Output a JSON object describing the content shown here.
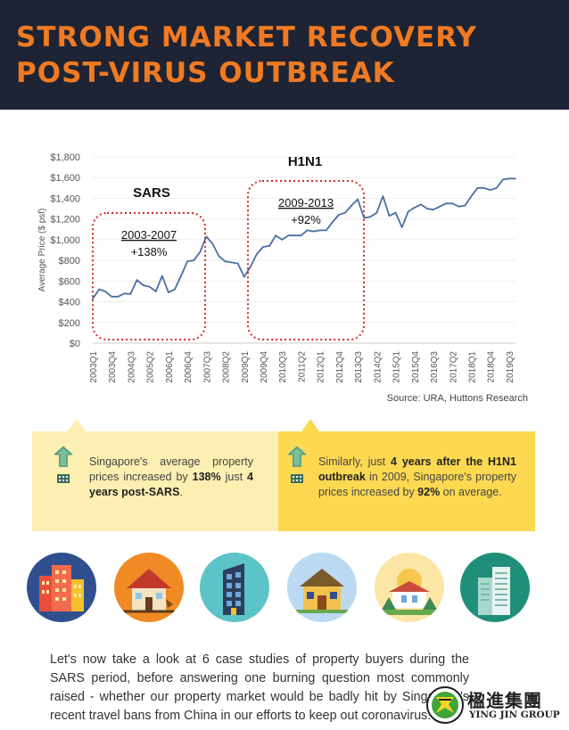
{
  "header": {
    "title_line1": "STRONG MARKET RECOVERY",
    "title_line2": "POST-VIRUS OUTBREAK",
    "background": "#1e2433",
    "accent": "#f07a22"
  },
  "chart_data": {
    "type": "line",
    "title": "",
    "xlabel": "",
    "ylabel": "Average Price ($ psf)",
    "ylim": [
      0,
      1800
    ],
    "yticks": [
      0,
      200,
      400,
      600,
      800,
      1000,
      1200,
      1400,
      1600,
      1800
    ],
    "ytick_labels": [
      "$0",
      "$200",
      "$400",
      "$600",
      "$800",
      "$1,000",
      "$1,200",
      "$1,400",
      "$1,600",
      "$1,800"
    ],
    "xtick_labels": [
      "2003Q1",
      "2003Q4",
      "2004Q3",
      "2005Q2",
      "2006Q1",
      "2006Q4",
      "2007Q3",
      "2008Q2",
      "2009Q1",
      "2009Q4",
      "2010Q3",
      "2011Q2",
      "2012Q1",
      "2012Q4",
      "2013Q3",
      "2014Q2",
      "2015Q1",
      "2015Q4",
      "2016Q3",
      "2017Q2",
      "2018Q1",
      "2018Q4",
      "2019Q3"
    ],
    "x": [
      "2003Q1",
      "2003Q2",
      "2003Q3",
      "2003Q4",
      "2004Q1",
      "2004Q2",
      "2004Q3",
      "2004Q4",
      "2005Q1",
      "2005Q2",
      "2005Q3",
      "2005Q4",
      "2006Q1",
      "2006Q2",
      "2006Q3",
      "2006Q4",
      "2007Q1",
      "2007Q2",
      "2007Q3",
      "2007Q4",
      "2008Q1",
      "2008Q2",
      "2008Q3",
      "2008Q4",
      "2009Q1",
      "2009Q2",
      "2009Q3",
      "2009Q4",
      "2010Q1",
      "2010Q2",
      "2010Q3",
      "2010Q4",
      "2011Q1",
      "2011Q2",
      "2011Q3",
      "2011Q4",
      "2012Q1",
      "2012Q2",
      "2012Q3",
      "2012Q4",
      "2013Q1",
      "2013Q2",
      "2013Q3",
      "2013Q4",
      "2014Q1",
      "2014Q2",
      "2014Q3",
      "2014Q4",
      "2015Q1",
      "2015Q2",
      "2015Q3",
      "2015Q4",
      "2016Q1",
      "2016Q2",
      "2016Q3",
      "2016Q4",
      "2017Q1",
      "2017Q2",
      "2017Q3",
      "2017Q4",
      "2018Q1",
      "2018Q2",
      "2018Q3",
      "2018Q4",
      "2019Q1",
      "2019Q2",
      "2019Q3",
      "2019Q4"
    ],
    "series": [
      {
        "name": "",
        "color": "#4a6fa5",
        "values": [
          430,
          520,
          500,
          450,
          450,
          480,
          475,
          610,
          560,
          545,
          500,
          650,
          490,
          520,
          650,
          790,
          800,
          880,
          1030,
          960,
          840,
          790,
          780,
          770,
          640,
          740,
          860,
          930,
          940,
          1040,
          1000,
          1040,
          1040,
          1040,
          1090,
          1080,
          1090,
          1090,
          1170,
          1240,
          1260,
          1330,
          1390,
          1210,
          1220,
          1260,
          1420,
          1230,
          1260,
          1120,
          1270,
          1310,
          1340,
          1300,
          1290,
          1320,
          1350,
          1350,
          1320,
          1330,
          1420,
          1500,
          1500,
          1480,
          1500,
          1580,
          1590,
          1590
        ]
      }
    ],
    "annotations": [
      {
        "heading": "SARS",
        "period": "2003-2007",
        "change": "+138%"
      },
      {
        "heading": "H1N1",
        "period": "2009-2013",
        "change": "+92%"
      }
    ],
    "grid": true,
    "legend": "none"
  },
  "source": "Source: URA, Huttons Research",
  "cards": {
    "left": {
      "text_before": "Singapore's average property prices increased by ",
      "bold1": "138%",
      "text_middle": " just ",
      "bold2": "4 years post-SARS",
      "text_after": ".",
      "background": "#fdefb2"
    },
    "right": {
      "text_before": "Similarly, just ",
      "bold1": "4 years after the H1N1 outbreak",
      "text_after": " in 2009, Singapore's property prices increased by ",
      "bold2": "92%",
      "text_end": " on average.",
      "background": "#fdd952"
    },
    "icon": "building-growth-icon"
  },
  "houses": [
    "apartment-block-icon",
    "damaged-house-icon",
    "glass-tower-icon",
    "suburban-house-icon",
    "landed-house-icon",
    "skyscraper-icon"
  ],
  "paragraph": "Let's now take a look at 6 case studies of property buyers during the SARS period, before answering one burning question most commonly raised - whether our property market would be badly hit by Singapore's recent travel bans from China in our efforts to keep out coronavirus.",
  "logo": {
    "chinese": "楹進集團",
    "english": "YING JIN GROUP"
  }
}
